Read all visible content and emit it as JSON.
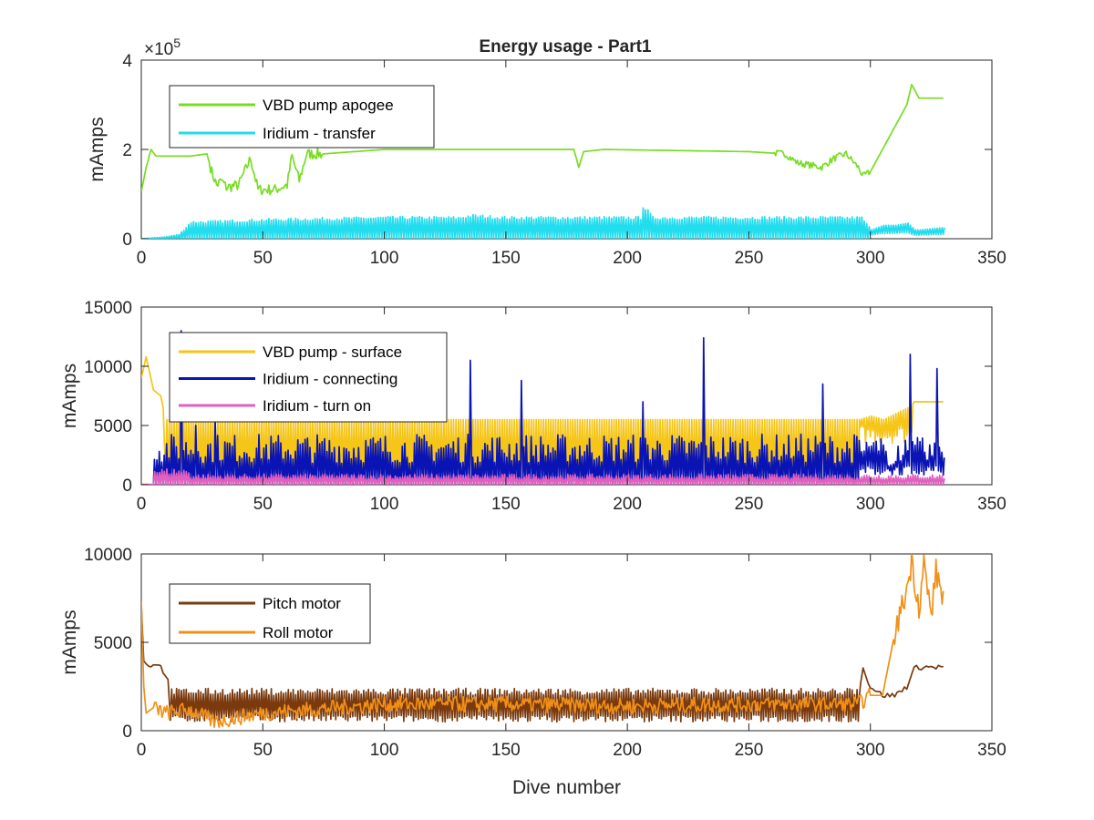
{
  "figure_title": "Energy usage - Part1",
  "chart_data": [
    {
      "type": "line",
      "title": "Energy usage - Part1",
      "xlabel": "",
      "ylabel": "mAmps",
      "xlim": [
        0,
        350
      ],
      "ylim": [
        0,
        4
      ],
      "y_multiplier_label": "×10",
      "y_multiplier_exponent": "5",
      "x_ticks": [
        "0",
        "50",
        "100",
        "150",
        "200",
        "250",
        "300",
        "350"
      ],
      "y_ticks": [
        "0",
        "2",
        "4"
      ],
      "legend_position": "top-left",
      "series": [
        {
          "name": "VBD pump apogee",
          "color": "#77dd22",
          "x": [
            0,
            2,
            4,
            6,
            10,
            20,
            27,
            29,
            31,
            33,
            35,
            40,
            45,
            48,
            50,
            55,
            60,
            62,
            65,
            68,
            70,
            75,
            100,
            150,
            178,
            180,
            182,
            190,
            250,
            265,
            270,
            280,
            285,
            290,
            295,
            297,
            300,
            305,
            310,
            315,
            317,
            320,
            330
          ],
          "values": [
            1.05,
            1.6,
            2.0,
            1.85,
            1.85,
            1.85,
            1.9,
            1.5,
            1.2,
            1.3,
            1.15,
            1.2,
            1.8,
            1.1,
            1.1,
            1.1,
            1.2,
            1.85,
            1.3,
            1.9,
            1.9,
            1.9,
            2.0,
            2.0,
            2.0,
            1.6,
            1.95,
            2.0,
            1.95,
            1.9,
            1.7,
            1.6,
            1.8,
            1.9,
            1.6,
            1.4,
            1.5,
            2.0,
            2.5,
            3.0,
            3.45,
            3.15,
            3.15
          ]
        },
        {
          "name": "Iridium - transfer",
          "color": "#22ddee",
          "pattern": "spikes",
          "x": [
            0,
            10,
            15,
            20,
            25,
            50,
            100,
            130,
            135,
            150,
            200,
            205,
            206,
            210,
            250,
            296,
            300,
            305,
            310,
            315,
            318,
            320,
            330
          ],
          "values": [
            0.0,
            0.05,
            0.1,
            0.4,
            0.4,
            0.45,
            0.5,
            0.5,
            0.55,
            0.5,
            0.5,
            0.5,
            0.8,
            0.5,
            0.5,
            0.5,
            0.2,
            0.3,
            0.3,
            0.35,
            0.2,
            0.2,
            0.25
          ]
        }
      ]
    },
    {
      "type": "line",
      "xlabel": "",
      "ylabel": "mAmps",
      "xlim": [
        0,
        350
      ],
      "ylim": [
        0,
        15000
      ],
      "x_ticks": [
        "0",
        "50",
        "100",
        "150",
        "200",
        "250",
        "300",
        "350"
      ],
      "y_ticks": [
        "0",
        "5000",
        "10000",
        "15000"
      ],
      "legend_position": "top-left",
      "series": [
        {
          "name": "VBD pump - surface",
          "color": "#f5c518",
          "x": [
            0,
            2,
            5,
            8,
            10,
            15,
            50,
            100,
            150,
            200,
            202,
            250,
            295,
            300,
            305,
            310,
            315,
            318,
            320,
            330
          ],
          "values": [
            9000,
            10800,
            8000,
            7500,
            5500,
            5500,
            5500,
            5500,
            5500,
            5500,
            5500,
            5500,
            5500,
            5800,
            5500,
            6000,
            6500,
            7000,
            7000,
            7000
          ],
          "pattern": "oscillating between ~300 and ~5500 for dives 10-296"
        },
        {
          "name": "Iridium - connecting",
          "color": "#0a14b4",
          "x": [
            0,
            5,
            10,
            15,
            16,
            20,
            30,
            50,
            100,
            135,
            150,
            156,
            200,
            206,
            230,
            231,
            250,
            280,
            300,
            305,
            310,
            315,
            316,
            320,
            325,
            327,
            330
          ],
          "values": [
            0,
            0,
            2000,
            5000,
            13000,
            3000,
            5500,
            4000,
            3500,
            10500,
            3000,
            8800,
            3000,
            7000,
            3500,
            12400,
            3000,
            8500,
            3500,
            2000,
            1500,
            3500,
            11000,
            4000,
            3000,
            9800,
            2500
          ],
          "pattern": "spikes with baseline near 0"
        },
        {
          "name": "Iridium - turn on",
          "color": "#e060c0",
          "x": [
            0,
            5,
            10,
            15,
            20,
            50,
            100,
            150,
            200,
            250,
            300,
            320,
            330
          ],
          "values": [
            0,
            200,
            800,
            1200,
            700,
            700,
            700,
            700,
            700,
            700,
            700,
            700,
            1000
          ],
          "pattern": "small spikes near 0"
        }
      ]
    },
    {
      "type": "line",
      "xlabel": "Dive number",
      "ylabel": "mAmps",
      "xlim": [
        0,
        350
      ],
      "ylim": [
        0,
        10000
      ],
      "x_ticks": [
        "0",
        "50",
        "100",
        "150",
        "200",
        "250",
        "300",
        "350"
      ],
      "y_ticks": [
        "0",
        "5000",
        "10000"
      ],
      "legend_position": "top-left",
      "series": [
        {
          "name": "Pitch motor",
          "color": "#7a3a0e",
          "x": [
            0,
            1,
            3,
            5,
            8,
            10,
            12,
            15,
            50,
            100,
            150,
            200,
            250,
            295,
            297,
            300,
            305,
            310,
            315,
            318,
            320,
            330
          ],
          "values": [
            7000,
            4000,
            3700,
            3700,
            3600,
            3200,
            2800,
            2200,
            2300,
            2200,
            2200,
            2200,
            2200,
            2200,
            3500,
            2500,
            2000,
            2000,
            2500,
            3500,
            3600,
            3600
          ],
          "pattern": "oscillating between ~500 and ~2300 for dives 12-296"
        },
        {
          "name": "Roll motor",
          "color": "#f09018",
          "x": [
            0,
            1,
            2,
            5,
            10,
            20,
            30,
            50,
            100,
            150,
            200,
            250,
            295,
            300,
            305,
            310,
            315,
            317,
            320,
            322,
            325,
            327,
            330
          ],
          "values": [
            7300,
            2500,
            1000,
            1300,
            1000,
            1200,
            500,
            1000,
            1500,
            1500,
            1400,
            1500,
            1500,
            2000,
            2000,
            5500,
            8000,
            9600,
            7000,
            9500,
            6500,
            9000,
            7500
          ],
          "pattern": "noisy around 500-2000 for dives 5-296"
        }
      ]
    }
  ]
}
